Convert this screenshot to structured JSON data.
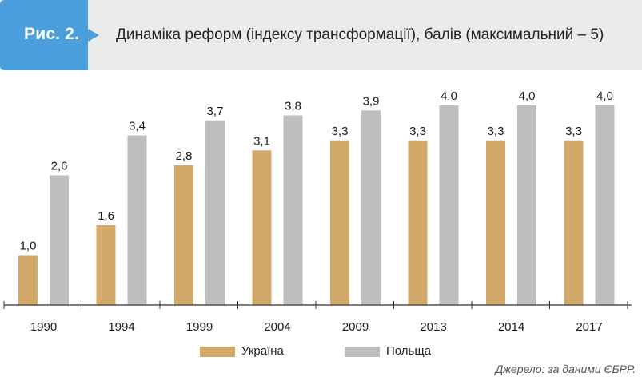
{
  "figure": {
    "label": "Рис. 2.",
    "title": "Динаміка реформ (індексу трансформації), балів (максимальний – 5)",
    "source": "Джерело: за даними ЄБРР."
  },
  "colors": {
    "badge": "#4a9fdc",
    "header_band": "#ebebeb",
    "ukraine": "#d3a96a",
    "poland": "#bebebe",
    "axis": "#333333"
  },
  "chart_data": {
    "type": "bar",
    "title": "Динаміка реформ (індексу трансформації), балів (максимальний – 5)",
    "categories": [
      "1990",
      "1994",
      "1999",
      "2004",
      "2009",
      "2013",
      "2014",
      "2017"
    ],
    "series": [
      {
        "name": "Україна",
        "values": [
          1.0,
          1.6,
          2.8,
          3.1,
          3.3,
          3.3,
          3.3,
          3.3
        ],
        "labels": [
          "1,0",
          "1,6",
          "2,8",
          "3,1",
          "3,3",
          "3,3",
          "3,3",
          "3,3"
        ]
      },
      {
        "name": "Польща",
        "values": [
          2.6,
          3.4,
          3.7,
          3.8,
          3.9,
          4.0,
          4.0,
          4.0
        ],
        "labels": [
          "2,6",
          "3,4",
          "3,7",
          "3,8",
          "3,9",
          "4,0",
          "4,0",
          "4,0"
        ]
      }
    ],
    "ylim": [
      0,
      4.0
    ],
    "grid": false,
    "legend_position": "bottom-center",
    "xlabel": "",
    "ylabel": ""
  }
}
